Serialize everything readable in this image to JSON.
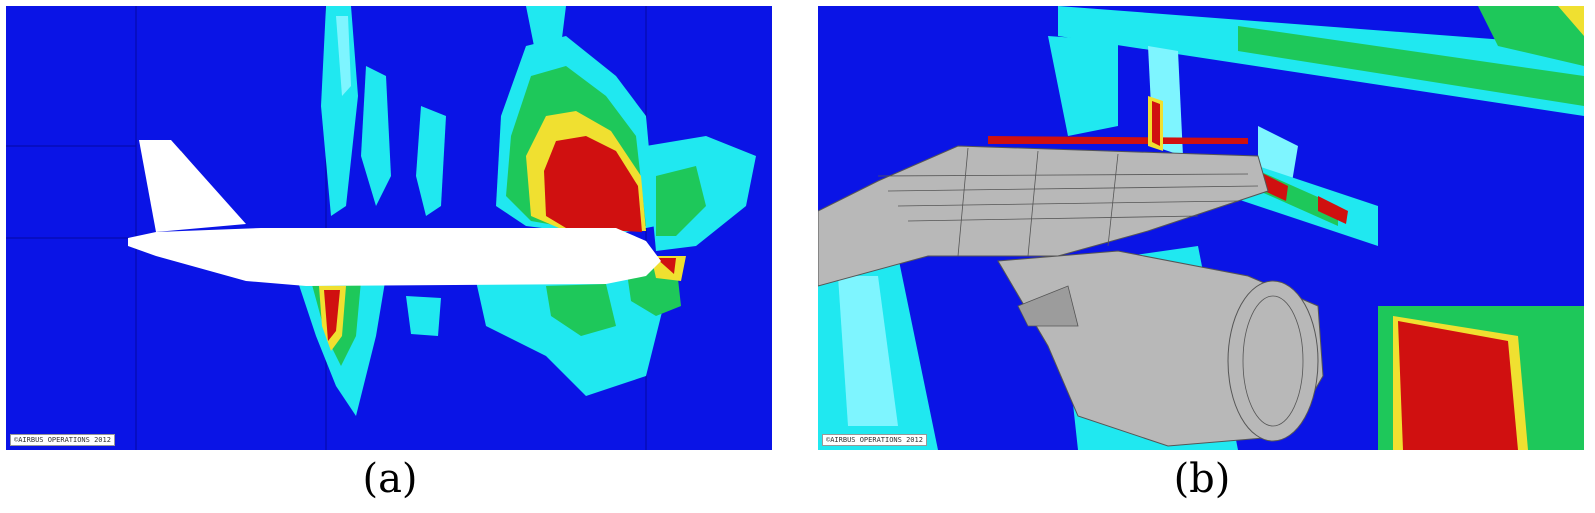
{
  "figure": {
    "panel_a": {
      "caption": "(a)",
      "copyright": "©AIRBUS OPERATIONS 2012"
    },
    "panel_b": {
      "caption": "(b)",
      "copyright": "©AIRBUS OPERATIONS 2012"
    }
  },
  "colors": {
    "background_blue": "#0a14e6",
    "cyan": "#20e8f0",
    "light_cyan": "#7ef5ff",
    "green": "#1ec85a",
    "yellow": "#f0e030",
    "red": "#d01010",
    "aircraft_white": "#ffffff",
    "aircraft_grey": "#b8b8b8"
  }
}
